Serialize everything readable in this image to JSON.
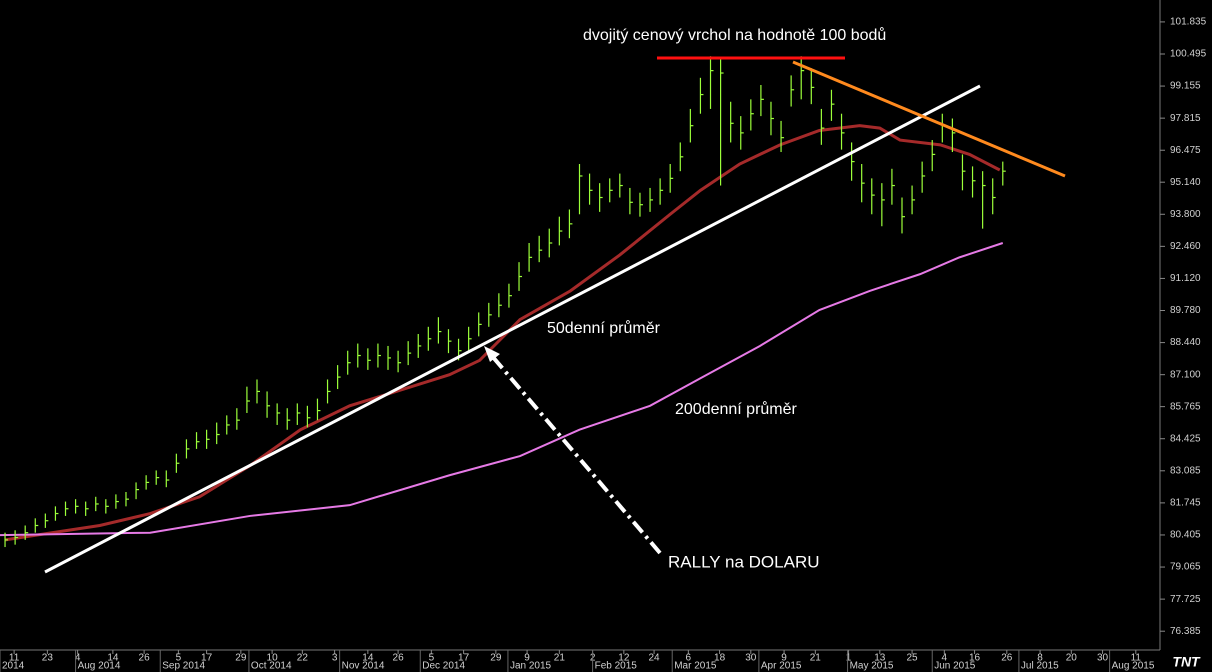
{
  "chart_data": {
    "type": "ohlc",
    "xlim": [
      -0.5,
      114.6
    ],
    "ylim": [
      75.6,
      102.75
    ],
    "yticks": [
      101.835,
      100.495,
      99.155,
      97.815,
      96.475,
      {
        "value": 95.14,
        "label": "95.140"
      },
      {
        "value": 93.8,
        "label": "93.800"
      },
      {
        "value": 92.46,
        "label": "92.460"
      },
      {
        "value": 91.12,
        "label": "91.120"
      },
      {
        "value": 89.78,
        "label": "89.780"
      },
      {
        "value": 88.44,
        "label": "88.440"
      },
      {
        "value": 87.1,
        "label": "87.100"
      },
      85.765,
      84.425,
      83.085,
      81.745,
      80.405,
      79.065,
      77.725,
      76.385
    ],
    "xticks": [
      {
        "value": 0.9,
        "label": "11"
      },
      {
        "value": 4.2,
        "label": "23"
      },
      {
        "value": 7.2,
        "label": "4"
      },
      {
        "value": 10.7,
        "label": "14"
      },
      {
        "value": 13.8,
        "label": "26"
      },
      {
        "value": 17.2,
        "label": "5"
      },
      {
        "value": 20.0,
        "label": "17"
      },
      {
        "value": 23.4,
        "label": "29"
      },
      {
        "value": 26.5,
        "label": "10"
      },
      {
        "value": 29.5,
        "label": "22"
      },
      {
        "value": 32.7,
        "label": "3"
      },
      {
        "value": 36.0,
        "label": "14"
      },
      {
        "value": 39.0,
        "label": "26"
      },
      {
        "value": 42.3,
        "label": "5"
      },
      {
        "value": 45.5,
        "label": "17"
      },
      {
        "value": 48.7,
        "label": "29"
      },
      {
        "value": 51.8,
        "label": "9"
      },
      {
        "value": 55.0,
        "label": "21"
      },
      {
        "value": 58.3,
        "label": "2"
      },
      {
        "value": 61.4,
        "label": "12"
      },
      {
        "value": 64.4,
        "label": "24"
      },
      {
        "value": 67.8,
        "label": "6"
      },
      {
        "value": 70.9,
        "label": "18"
      },
      {
        "value": 74.0,
        "label": "30"
      },
      {
        "value": 77.3,
        "label": "9"
      },
      {
        "value": 80.4,
        "label": "21"
      },
      {
        "value": 83.7,
        "label": "1"
      },
      {
        "value": 86.8,
        "label": "13"
      },
      {
        "value": 90.0,
        "label": "25"
      },
      {
        "value": 93.2,
        "label": "4"
      },
      {
        "value": 96.2,
        "label": "16"
      },
      {
        "value": 99.4,
        "label": "26"
      },
      {
        "value": 102.7,
        "label": "8"
      },
      {
        "value": 105.8,
        "label": "20"
      },
      {
        "value": 108.9,
        "label": "30"
      },
      {
        "value": 112.2,
        "label": "11"
      }
    ],
    "month_ticks": [
      {
        "value": -0.5,
        "label": "2014"
      },
      {
        "value": 7.0,
        "label": "Aug 2014"
      },
      {
        "value": 15.4,
        "label": "Sep 2014"
      },
      {
        "value": 24.2,
        "label": "Oct 2014"
      },
      {
        "value": 33.2,
        "label": "Nov 2014"
      },
      {
        "value": 41.2,
        "label": "Dec 2014"
      },
      {
        "value": 49.9,
        "label": "Jan 2015"
      },
      {
        "value": 58.3,
        "label": "Feb 2015"
      },
      {
        "value": 66.2,
        "label": "Mar 2015"
      },
      {
        "value": 74.8,
        "label": "Apr 2015"
      },
      {
        "value": 83.6,
        "label": "May 2015"
      },
      {
        "value": 92.0,
        "label": "Jun 2015"
      },
      {
        "value": 100.6,
        "label": "Jul 2015"
      },
      {
        "value": 109.6,
        "label": "Aug 2015"
      }
    ],
    "bars": {
      "color": "#9cff3a",
      "close": [
        80.2,
        80.3,
        80.5,
        80.8,
        81.0,
        81.3,
        81.5,
        81.6,
        81.5,
        81.7,
        81.6,
        81.8,
        81.9,
        82.3,
        82.6,
        82.8,
        82.7,
        83.4,
        84.0,
        84.3,
        84.4,
        84.6,
        85.0,
        85.2,
        86.0,
        86.4,
        85.8,
        85.5,
        85.2,
        85.5,
        85.3,
        85.6,
        86.4,
        87.0,
        87.6,
        87.9,
        87.7,
        87.9,
        87.8,
        87.6,
        88.0,
        88.3,
        88.6,
        88.9,
        88.5,
        88.1,
        88.6,
        89.2,
        89.6,
        90.0,
        90.4,
        91.2,
        92.0,
        92.3,
        92.6,
        93.1,
        93.4,
        95.4,
        94.8,
        94.5,
        94.8,
        95.0,
        94.3,
        94.2,
        94.4,
        94.8,
        95.3,
        96.2,
        97.5,
        98.8,
        99.8,
        99.7,
        97.6,
        97.2,
        98.0,
        98.6,
        97.8,
        97.0,
        99.0,
        99.8,
        99.1,
        97.4,
        98.4,
        97.2,
        96.0,
        95.1,
        94.6,
        94.4,
        95.0,
        93.7,
        94.4,
        95.4,
        96.3,
        97.5,
        97.2,
        95.6,
        95.2,
        95.0,
        94.5,
        95.6
      ],
      "high": [
        80.5,
        80.6,
        80.8,
        81.1,
        81.3,
        81.6,
        81.8,
        81.9,
        81.8,
        82.0,
        81.9,
        82.1,
        82.2,
        82.6,
        82.9,
        83.1,
        83.1,
        83.8,
        84.4,
        84.7,
        84.8,
        85.1,
        85.4,
        85.7,
        86.6,
        86.9,
        86.4,
        85.9,
        85.7,
        85.9,
        85.8,
        86.1,
        86.9,
        87.5,
        88.1,
        88.4,
        88.2,
        88.4,
        88.3,
        88.1,
        88.5,
        88.8,
        89.1,
        89.5,
        89.0,
        88.6,
        89.1,
        89.7,
        90.1,
        90.5,
        90.9,
        91.8,
        92.6,
        92.9,
        93.2,
        93.7,
        94.0,
        95.9,
        95.5,
        95.1,
        95.3,
        95.5,
        94.9,
        94.7,
        94.9,
        95.3,
        95.9,
        96.8,
        98.2,
        99.5,
        100.4,
        100.3,
        98.5,
        97.9,
        98.6,
        99.2,
        98.5,
        97.7,
        99.6,
        100.4,
        99.9,
        98.2,
        99.0,
        98.0,
        96.8,
        95.9,
        95.3,
        95.1,
        95.7,
        94.5,
        95.0,
        96.0,
        96.9,
        98.0,
        97.8,
        96.3,
        95.8,
        95.6,
        95.3,
        96.0
      ],
      "low": [
        79.9,
        80.0,
        80.2,
        80.5,
        80.7,
        81.0,
        81.2,
        81.3,
        81.2,
        81.4,
        81.3,
        81.5,
        81.6,
        81.9,
        82.3,
        82.5,
        82.4,
        83.0,
        83.6,
        84.0,
        84.0,
        84.2,
        84.6,
        84.8,
        85.5,
        85.9,
        85.3,
        85.0,
        84.8,
        85.0,
        84.9,
        85.2,
        85.9,
        86.5,
        87.1,
        87.4,
        87.3,
        87.4,
        87.3,
        87.2,
        87.5,
        87.8,
        88.1,
        88.4,
        88.0,
        87.7,
        88.1,
        88.7,
        89.1,
        89.5,
        89.9,
        90.6,
        91.4,
        91.8,
        92.0,
        92.5,
        92.8,
        93.8,
        94.2,
        93.9,
        94.3,
        94.5,
        93.8,
        93.7,
        93.9,
        94.2,
        94.7,
        95.6,
        96.8,
        98.0,
        98.2,
        95.0,
        96.8,
        96.5,
        97.3,
        97.9,
        97.1,
        96.4,
        98.3,
        98.6,
        98.4,
        96.7,
        97.7,
        96.5,
        95.2,
        94.3,
        93.8,
        93.3,
        94.2,
        93.0,
        93.8,
        94.7,
        95.6,
        96.8,
        96.4,
        94.8,
        94.5,
        93.2,
        93.8,
        95.0
      ]
    },
    "series": [
      {
        "name": "50denní průměr",
        "color": "#a52a2a",
        "x": [
          0,
          9.4,
          14.4,
          19.3,
          24.3,
          29.3,
          34.2,
          39.2,
          44.1,
          47.1,
          51.1,
          56.1,
          61.0,
          66.0,
          69.0,
          72.9,
          76.9,
          80.8,
          84.8,
          86.8,
          88.8,
          92.8,
          95.7,
          98.7
        ],
        "values": [
          80.2,
          80.8,
          81.3,
          82.0,
          83.3,
          84.8,
          85.8,
          86.45,
          87.1,
          87.7,
          89.4,
          90.6,
          92.1,
          93.8,
          94.8,
          95.9,
          96.7,
          97.3,
          97.5,
          97.4,
          96.9,
          96.7,
          96.3,
          95.65
        ]
      },
      {
        "name": "200denní průměr",
        "color": "#e67ae6",
        "x": [
          -0.5,
          14.4,
          24.3,
          34.2,
          44.1,
          51.1,
          57.0,
          64.0,
          69.0,
          74.9,
          80.8,
          85.8,
          90.8,
          94.7,
          99.0
        ],
        "values": [
          80.4,
          80.5,
          81.2,
          81.65,
          82.9,
          83.7,
          84.8,
          85.8,
          86.95,
          88.3,
          89.8,
          90.6,
          91.3,
          92.0,
          92.6
        ]
      }
    ],
    "annotations": [
      "dvojitý cenový vrchol na hodnotě 100 bodů",
      "RALLY na DOLARU"
    ],
    "logo": "TNT"
  }
}
